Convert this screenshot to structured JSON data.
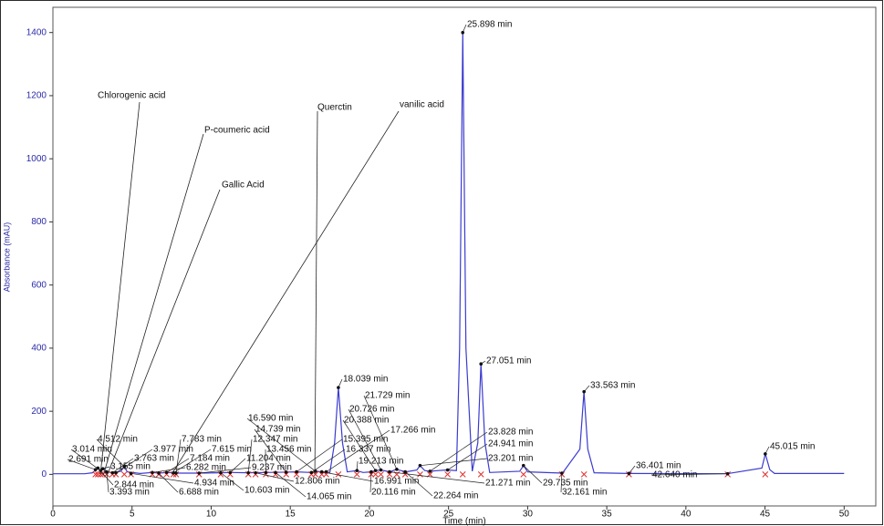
{
  "chart_data": {
    "type": "line",
    "xlabel": "Time (min)",
    "ylabel": "Absorbance (mAU)",
    "xlim": [
      0,
      52
    ],
    "ylim": [
      -100,
      1480
    ],
    "xticks": [
      0,
      5,
      10,
      15,
      20,
      25,
      30,
      35,
      40,
      45,
      50
    ],
    "yticks": [
      0,
      200,
      400,
      600,
      800,
      1000,
      1200,
      1400
    ],
    "series": [
      {
        "color": "#3b3bd0",
        "x": [
          0,
          2,
          2.5,
          2.7,
          2.85,
          3.0,
          3.2,
          3.4,
          3.8,
          4.3,
          4.5,
          4.7,
          5.5,
          6.3,
          6.7,
          7.2,
          7.8,
          9.2,
          10.6,
          11.2,
          12.3,
          13.5,
          14.7,
          15.4,
          16.3,
          16.6,
          17.0,
          17.5,
          17.8,
          18.04,
          18.3,
          18.6,
          19.2,
          19.6,
          20.1,
          20.4,
          20.7,
          21.3,
          21.7,
          22.3,
          23.0,
          23.2,
          23.5,
          23.8,
          24.9,
          25.5,
          25.7,
          25.9,
          26.1,
          26.5,
          26.85,
          27.05,
          27.3,
          27.6,
          29.5,
          29.74,
          30.0,
          32.2,
          33.3,
          33.56,
          33.8,
          34.2,
          36.4,
          42.6,
          44.8,
          45.02,
          45.3,
          45.6,
          50
        ],
        "values": [
          2,
          2,
          5,
          15,
          20,
          12,
          18,
          8,
          5,
          10,
          25,
          8,
          3,
          6,
          4,
          6,
          4,
          4,
          5,
          6,
          5,
          6,
          7,
          8,
          6,
          10,
          8,
          6,
          100,
          275,
          100,
          8,
          12,
          6,
          8,
          12,
          14,
          8,
          16,
          8,
          14,
          28,
          12,
          10,
          14,
          12,
          400,
          1400,
          400,
          10,
          100,
          350,
          100,
          6,
          10,
          28,
          8,
          4,
          80,
          262,
          80,
          5,
          3,
          2,
          20,
          65,
          15,
          3,
          3
        ]
      }
    ],
    "peaks": {
      "times": [
        25.898,
        27.051,
        33.563,
        18.039,
        45.015,
        21.729,
        20.726,
        20.388,
        17.266,
        23.828,
        24.941,
        23.201,
        21.271,
        15.395,
        16.337,
        19.213,
        16.991,
        20.116,
        22.264,
        16.59,
        14.739,
        12.347,
        13.456,
        11.204,
        9.237,
        12.806,
        10.603,
        14.065,
        7.783,
        3.977,
        7.615,
        3.763,
        7.184,
        6.282,
        4.934,
        6.688,
        4.512,
        3.014,
        2.691,
        3.155,
        2.844,
        3.393,
        29.735,
        32.161,
        36.401,
        42.64
      ],
      "heights": [
        1400,
        350,
        262,
        275,
        65,
        16,
        14,
        12,
        8,
        10,
        14,
        28,
        8,
        8,
        6,
        12,
        8,
        8,
        8,
        10,
        7,
        5,
        6,
        6,
        4,
        5,
        5,
        6,
        4,
        5,
        5,
        5,
        6,
        6,
        3,
        4,
        25,
        12,
        15,
        18,
        20,
        8,
        28,
        4,
        3,
        2
      ],
      "labels": [
        "25.898 min",
        "27.051 min",
        "33.563 min",
        "18.039 min",
        "45.015 min",
        "21.729 min",
        "20.726 min",
        "20.388 min",
        "17.266 min",
        "23.828 min",
        "24.941 min",
        "23.201 min",
        "21.271 min",
        "15.395 min",
        "16.337 min",
        "19.213 min",
        "16.991 min",
        "20.116 min",
        "22.264 min",
        "16.590 min",
        "14.739 min",
        "12.347 min",
        "13.456 min",
        "11.204 min",
        "9.237 min",
        "12.806 min",
        "10.603 min",
        "14.065 min",
        "7.783 min",
        "3.977 min",
        "7.615 min",
        "3.763 min",
        "7.184 min",
        "6.282 min",
        "4.934 min",
        "6.688 min",
        "4.512 min",
        "3.014 min",
        "2.691 min",
        "3.155 min",
        "2.844 min",
        "3.393 min",
        "29.735 min",
        "32.161 min",
        "36.401 min",
        "42.640 min"
      ]
    },
    "compounds": [
      {
        "label": "Chlorogenic acid",
        "time": 3.0
      },
      {
        "label": "P-coumeric acid",
        "time": 3.2
      },
      {
        "label": "Gallic Acid",
        "time": 3.45
      },
      {
        "label": "Querctin",
        "time": 16.55
      },
      {
        "label": "vanilic acid",
        "time": 7.5
      }
    ]
  }
}
